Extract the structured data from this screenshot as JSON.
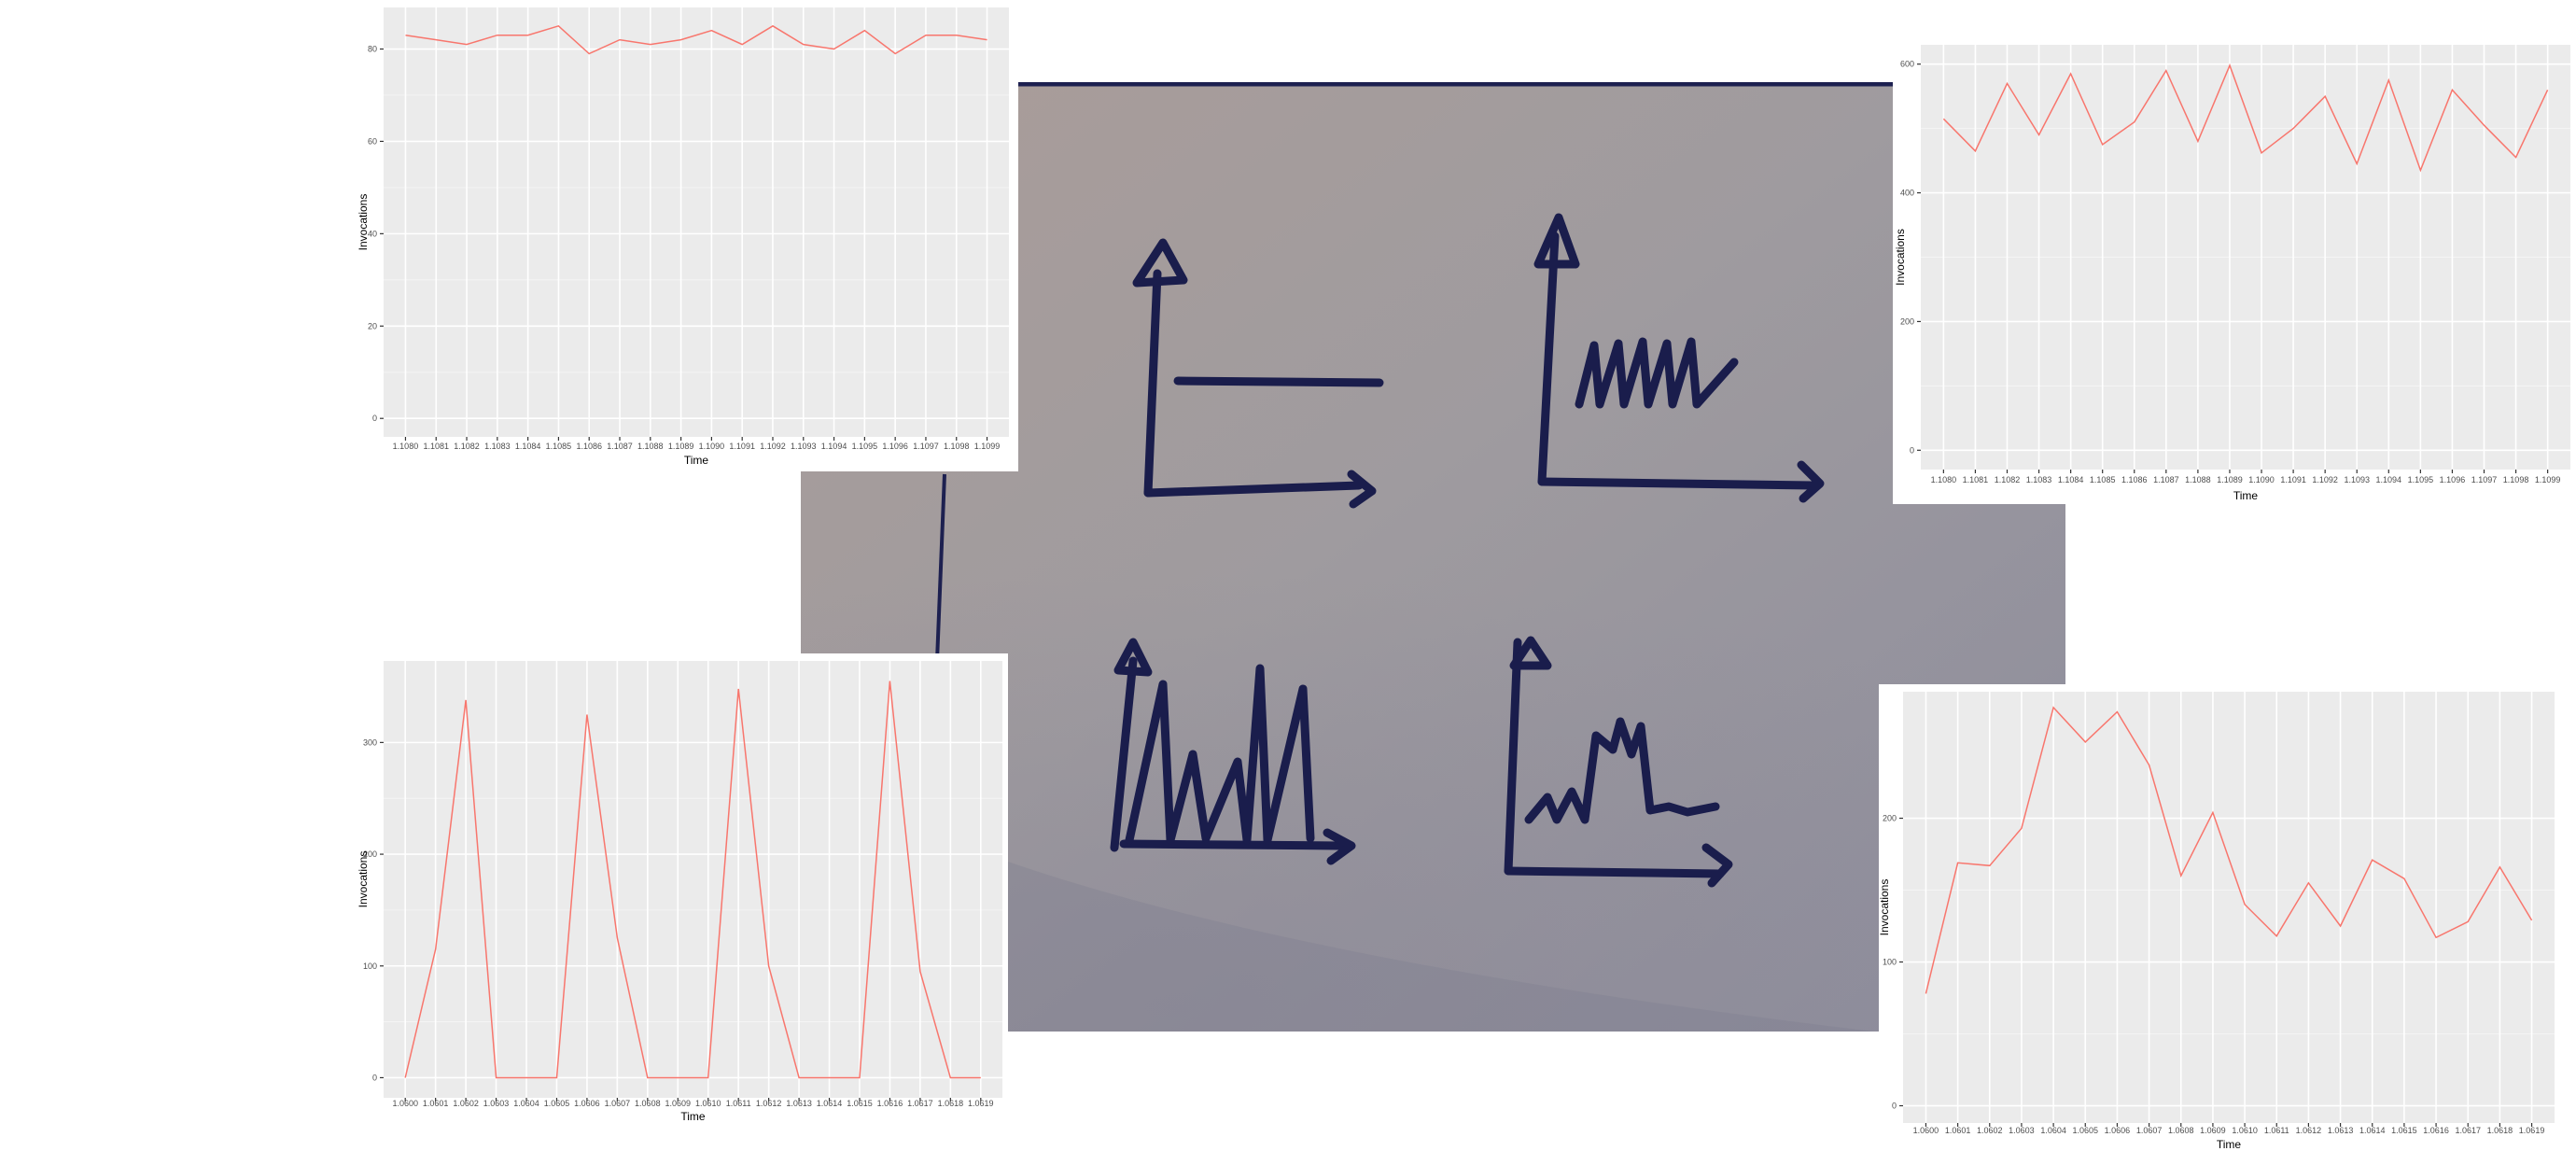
{
  "chart_data": [
    {
      "type": "line",
      "xlabel": "Time",
      "ylabel": "Invocations",
      "categories": [
        "1.1080",
        "1.1081",
        "1.1082",
        "1.1083",
        "1.1084",
        "1.1085",
        "1.1086",
        "1.1087",
        "1.1088",
        "1.1089",
        "1.1090",
        "1.1091",
        "1.1092",
        "1.1093",
        "1.1094",
        "1.1095",
        "1.1096",
        "1.1097",
        "1.1098",
        "1.1099"
      ],
      "values": [
        83,
        82,
        81,
        83,
        83,
        85,
        79,
        82,
        81,
        82,
        84,
        81,
        85,
        81,
        80,
        84,
        79,
        83,
        83,
        82
      ],
      "ylim": [
        -4,
        89
      ],
      "yticks": [
        0,
        20,
        40,
        60,
        80
      ],
      "color": "#f8766d"
    },
    {
      "type": "line",
      "xlabel": "Time",
      "ylabel": "Invocations",
      "categories": [
        "1.1080",
        "1.1081",
        "1.1082",
        "1.1083",
        "1.1084",
        "1.1085",
        "1.1086",
        "1.1087",
        "1.1088",
        "1.1089",
        "1.1090",
        "1.1091",
        "1.1092",
        "1.1093",
        "1.1094",
        "1.1095",
        "1.1096",
        "1.1097",
        "1.1098",
        "1.1099"
      ],
      "values": [
        515,
        465,
        570,
        490,
        585,
        475,
        510,
        590,
        480,
        598,
        462,
        500,
        550,
        445,
        575,
        435,
        560,
        505,
        455,
        560
      ],
      "ylim": [
        -30,
        630
      ],
      "yticks": [
        0,
        200,
        400,
        600
      ],
      "color": "#f8766d"
    },
    {
      "type": "line",
      "xlabel": "Time",
      "ylabel": "Invocations",
      "categories": [
        "1.0600",
        "1.0601",
        "1.0602",
        "1.0603",
        "1.0604",
        "1.0605",
        "1.0606",
        "1.0607",
        "1.0608",
        "1.0609",
        "1.0610",
        "1.0611",
        "1.0612",
        "1.0613",
        "1.0614",
        "1.0615",
        "1.0616",
        "1.0617",
        "1.0618",
        "1.0619"
      ],
      "values": [
        0,
        115,
        338,
        0,
        0,
        0,
        325,
        125,
        0,
        0,
        0,
        348,
        100,
        0,
        0,
        0,
        355,
        95,
        0,
        0
      ],
      "ylim": [
        -18,
        373
      ],
      "yticks": [
        0,
        100,
        200,
        300
      ],
      "color": "#f8766d"
    },
    {
      "type": "line",
      "xlabel": "Time",
      "ylabel": "Invocations",
      "categories": [
        "1.0600",
        "1.0601",
        "1.0602",
        "1.0603",
        "1.0604",
        "1.0605",
        "1.0606",
        "1.0607",
        "1.0608",
        "1.0609",
        "1.0610",
        "1.0611",
        "1.0612",
        "1.0613",
        "1.0614",
        "1.0615",
        "1.0616",
        "1.0617",
        "1.0618",
        "1.0619"
      ],
      "values": [
        78,
        169,
        167,
        193,
        277,
        253,
        274,
        237,
        160,
        204,
        140,
        118,
        155,
        125,
        171,
        158,
        117,
        128,
        166,
        129
      ],
      "ylim": [
        -12,
        288
      ],
      "yticks": [
        0,
        100,
        200
      ],
      "color": "#f8766d"
    }
  ]
}
